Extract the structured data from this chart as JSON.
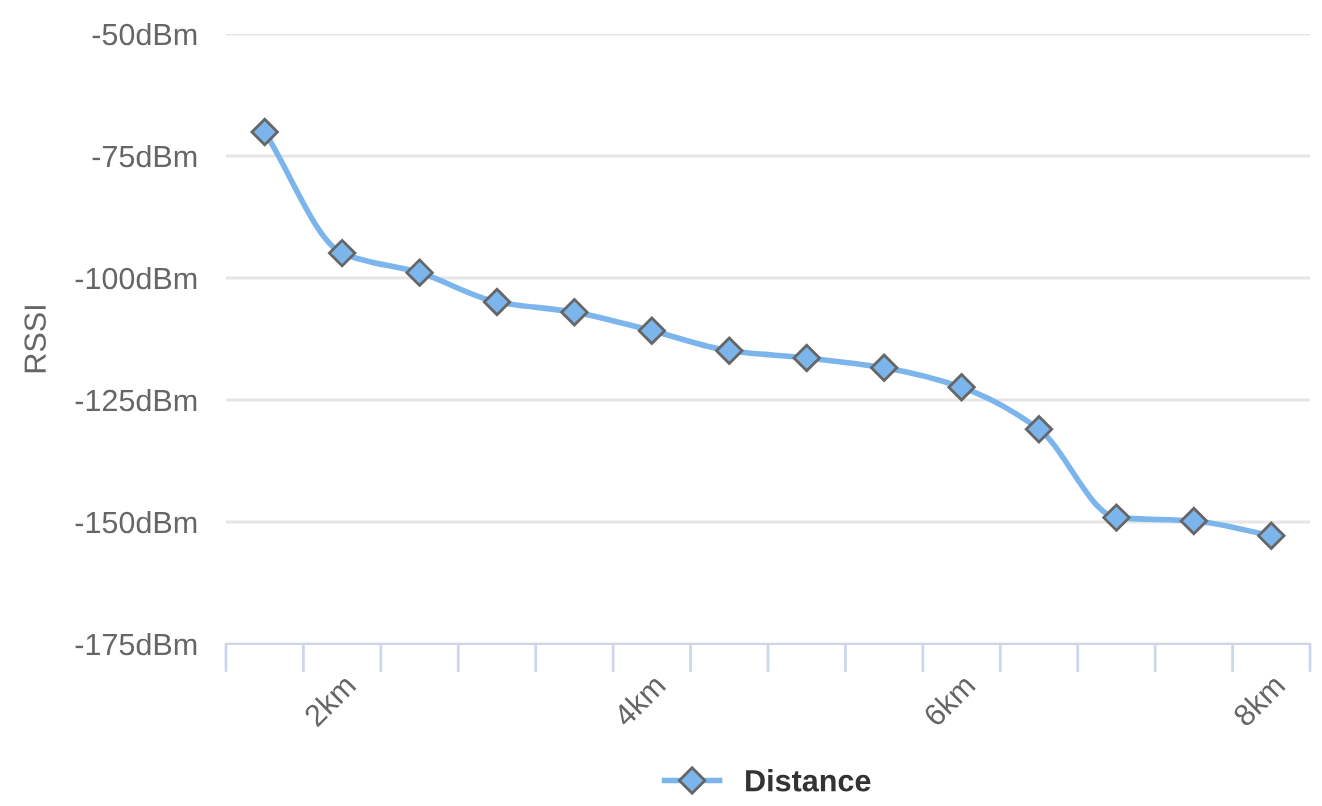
{
  "chart_data": {
    "type": "line",
    "ylabel": "RSSI",
    "categories": [
      null,
      "2km",
      null,
      null,
      null,
      "4km",
      null,
      null,
      null,
      "6km",
      null,
      null,
      null,
      "8km"
    ],
    "series": [
      {
        "name": "Distance",
        "color": "#7cb5ec",
        "values": [
          -70.1,
          -94.9,
          -98.9,
          -104.9,
          -107.0,
          -110.8,
          -114.9,
          -116.4,
          -118.4,
          -122.4,
          -131.0,
          -149.1,
          -149.8,
          -152.8
        ]
      }
    ],
    "ylim": [
      -175,
      -50
    ],
    "yticks": [
      {
        "value": -175,
        "label": "-175dBm"
      },
      {
        "value": -150,
        "label": "-150dBm"
      },
      {
        "value": -125,
        "label": "-125dBm"
      },
      {
        "value": -100,
        "label": "-100dBm"
      },
      {
        "value": -75,
        "label": "-75dBm"
      },
      {
        "value": -50,
        "label": "-50dBm"
      }
    ],
    "grid": "y",
    "legend": "bottom",
    "marker": "diamond",
    "line_style": "solid"
  }
}
